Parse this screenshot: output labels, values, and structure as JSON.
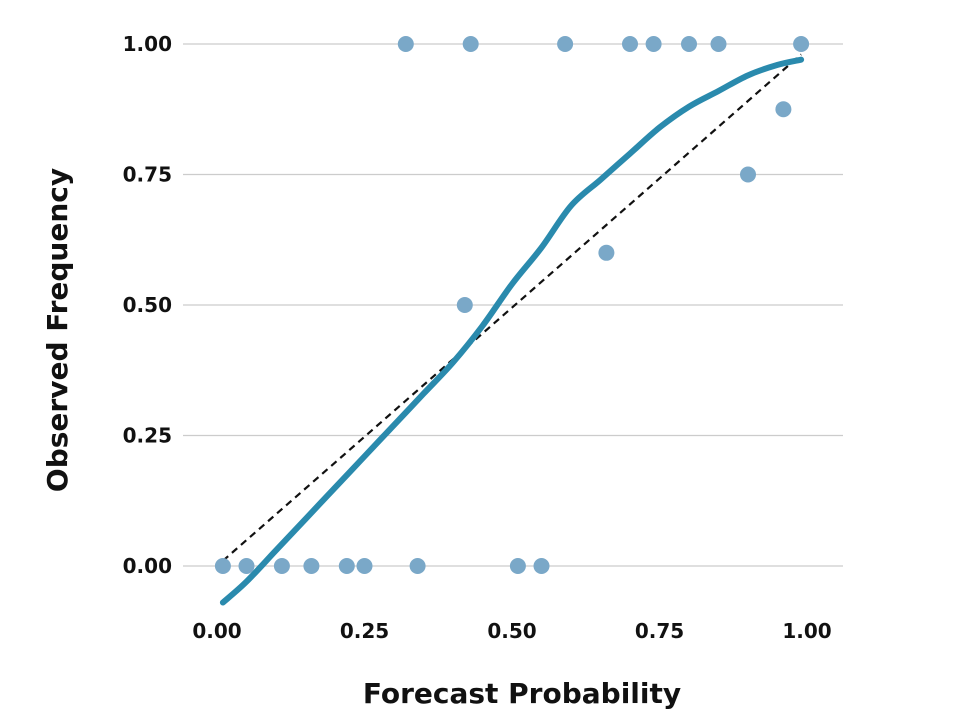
{
  "chart_data": {
    "type": "scatter",
    "xlabel": "Forecast Probability",
    "ylabel": "Observed Frequency",
    "xlim": [
      -0.01,
      1.05
    ],
    "ylim": [
      -0.07,
      1.0
    ],
    "x_ticks": [
      "0.00",
      "0.25",
      "0.50",
      "0.75",
      "1.00"
    ],
    "y_ticks": [
      "0.00",
      "0.25",
      "0.50",
      "0.75",
      "1.00"
    ],
    "grid": "horizontal",
    "colors": {
      "points": "#7aa8c8",
      "curve": "#2a8aad",
      "reference": "#111111",
      "grid": "#cccccc"
    },
    "points": [
      {
        "x": 0.01,
        "y": 0.0
      },
      {
        "x": 0.05,
        "y": 0.0
      },
      {
        "x": 0.11,
        "y": 0.0
      },
      {
        "x": 0.16,
        "y": 0.0
      },
      {
        "x": 0.22,
        "y": 0.0
      },
      {
        "x": 0.25,
        "y": 0.0
      },
      {
        "x": 0.34,
        "y": 0.0
      },
      {
        "x": 0.51,
        "y": 0.0
      },
      {
        "x": 0.55,
        "y": 0.0
      },
      {
        "x": 0.32,
        "y": 1.0
      },
      {
        "x": 0.43,
        "y": 1.0
      },
      {
        "x": 0.59,
        "y": 1.0
      },
      {
        "x": 0.7,
        "y": 1.0
      },
      {
        "x": 0.74,
        "y": 1.0
      },
      {
        "x": 0.8,
        "y": 1.0
      },
      {
        "x": 0.85,
        "y": 1.0
      },
      {
        "x": 0.99,
        "y": 1.0
      },
      {
        "x": 0.42,
        "y": 0.5
      },
      {
        "x": 0.66,
        "y": 0.6
      },
      {
        "x": 0.9,
        "y": 0.75
      },
      {
        "x": 0.96,
        "y": 0.875
      }
    ],
    "calibration_curve": {
      "x": [
        0.01,
        0.05,
        0.1,
        0.15,
        0.2,
        0.25,
        0.3,
        0.35,
        0.4,
        0.45,
        0.5,
        0.55,
        0.6,
        0.65,
        0.7,
        0.75,
        0.8,
        0.85,
        0.9,
        0.95,
        0.99
      ],
      "y": [
        -0.07,
        -0.03,
        0.03,
        0.09,
        0.15,
        0.21,
        0.27,
        0.33,
        0.39,
        0.46,
        0.54,
        0.61,
        0.69,
        0.74,
        0.79,
        0.84,
        0.88,
        0.91,
        0.94,
        0.96,
        0.97
      ]
    },
    "reference_line": {
      "x": [
        0.01,
        0.99
      ],
      "y": [
        0.01,
        0.98
      ]
    }
  }
}
